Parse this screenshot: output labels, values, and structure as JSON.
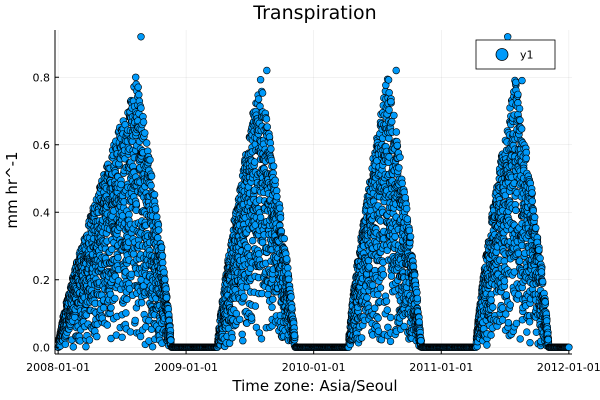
{
  "chart_data": {
    "type": "scatter",
    "title": "Transpiration",
    "xlabel": "Time zone: Asia/Seoul",
    "ylabel": "mm hr^-1",
    "xlim": [
      "2007-12-23",
      "2012-01-10"
    ],
    "ylim": [
      -0.02,
      0.94
    ],
    "x_ticks": [
      "2008-01-01",
      "2009-01-01",
      "2010-01-01",
      "2011-01-01",
      "2012-01-01"
    ],
    "y_ticks": [
      0.0,
      0.2,
      0.4,
      0.6,
      0.8
    ],
    "grid": true,
    "legend": {
      "position": "top-right",
      "entries": [
        "y1"
      ]
    },
    "series": [
      {
        "name": "y1",
        "color": "#009AFA",
        "edge_color": "#000000",
        "marker": "circle",
        "growing_seasons": [
          {
            "start": "2008-01-01",
            "peak": "2008-08-15",
            "end": "2008-11-20",
            "peak_value": 0.8
          },
          {
            "start": "2009-04-01",
            "peak": "2009-08-01",
            "end": "2009-11-10",
            "peak_value": 0.8
          },
          {
            "start": "2010-04-10",
            "peak": "2010-08-01",
            "end": "2010-11-05",
            "peak_value": 0.81
          },
          {
            "start": "2011-04-10",
            "peak": "2011-08-01",
            "end": "2011-11-05",
            "peak_value": 0.8
          }
        ],
        "notable_points": [
          {
            "x": "2008-08-25",
            "y": 0.92
          },
          {
            "x": "2011-07-10",
            "y": 0.92
          },
          {
            "x": "2011-07-25",
            "y": 0.88
          },
          {
            "x": "2008-08-10",
            "y": 0.8
          },
          {
            "x": "2009-08-20",
            "y": 0.82
          },
          {
            "x": "2010-08-25",
            "y": 0.82
          },
          {
            "x": "2011-08-20",
            "y": 0.79
          }
        ]
      }
    ]
  }
}
